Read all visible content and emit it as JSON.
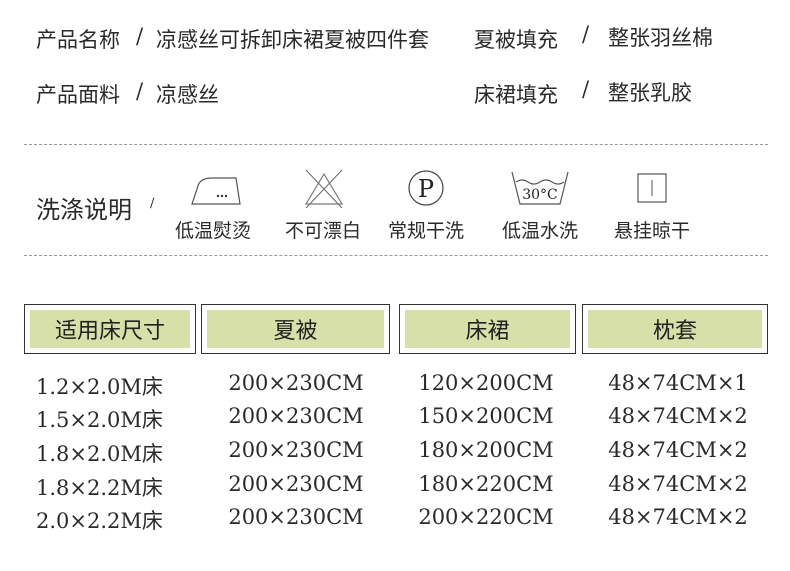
{
  "product_info": [
    {
      "label": "产品名称",
      "sep": "/",
      "value": "凉感丝可拆卸床裙夏被四件套"
    },
    {
      "label": "夏被填充",
      "sep": "/",
      "value": "整张羽丝棉"
    },
    {
      "label": "产品面料",
      "sep": "/",
      "value": "凉感丝"
    },
    {
      "label": "床裙填充",
      "sep": "/",
      "value": "整张乳胶"
    }
  ],
  "care": {
    "title": "洗涤说明",
    "sep": "/",
    "items": [
      {
        "icon": "iron-low-temp-icon",
        "label": "低温熨烫"
      },
      {
        "icon": "no-bleach-icon",
        "label": "不可漂白"
      },
      {
        "icon": "dry-clean-p-icon",
        "label": "常规干洗",
        "glyph": "P"
      },
      {
        "icon": "wash-30c-icon",
        "label": "低温水洗",
        "glyph": "30°C"
      },
      {
        "icon": "hang-dry-icon",
        "label": "悬挂晾干"
      }
    ]
  },
  "size_table": {
    "header_color": "#d6e0a8",
    "columns": [
      "适用床尺寸",
      "夏被",
      "床裙",
      "枕套"
    ],
    "rows": [
      [
        "1.2×2.0M床",
        "200×230CM",
        "120×200CM",
        "48×74CM×1"
      ],
      [
        "1.5×2.0M床",
        "200×230CM",
        "150×200CM",
        "48×74CM×2"
      ],
      [
        "1.8×2.0M床",
        "200×230CM",
        "180×200CM",
        "48×74CM×2"
      ],
      [
        "1.8×2.2M床",
        "200×230CM",
        "180×220CM",
        "48×74CM×2"
      ],
      [
        "2.0×2.2M床",
        "200×230CM",
        "200×220CM",
        "48×74CM×2"
      ]
    ]
  }
}
